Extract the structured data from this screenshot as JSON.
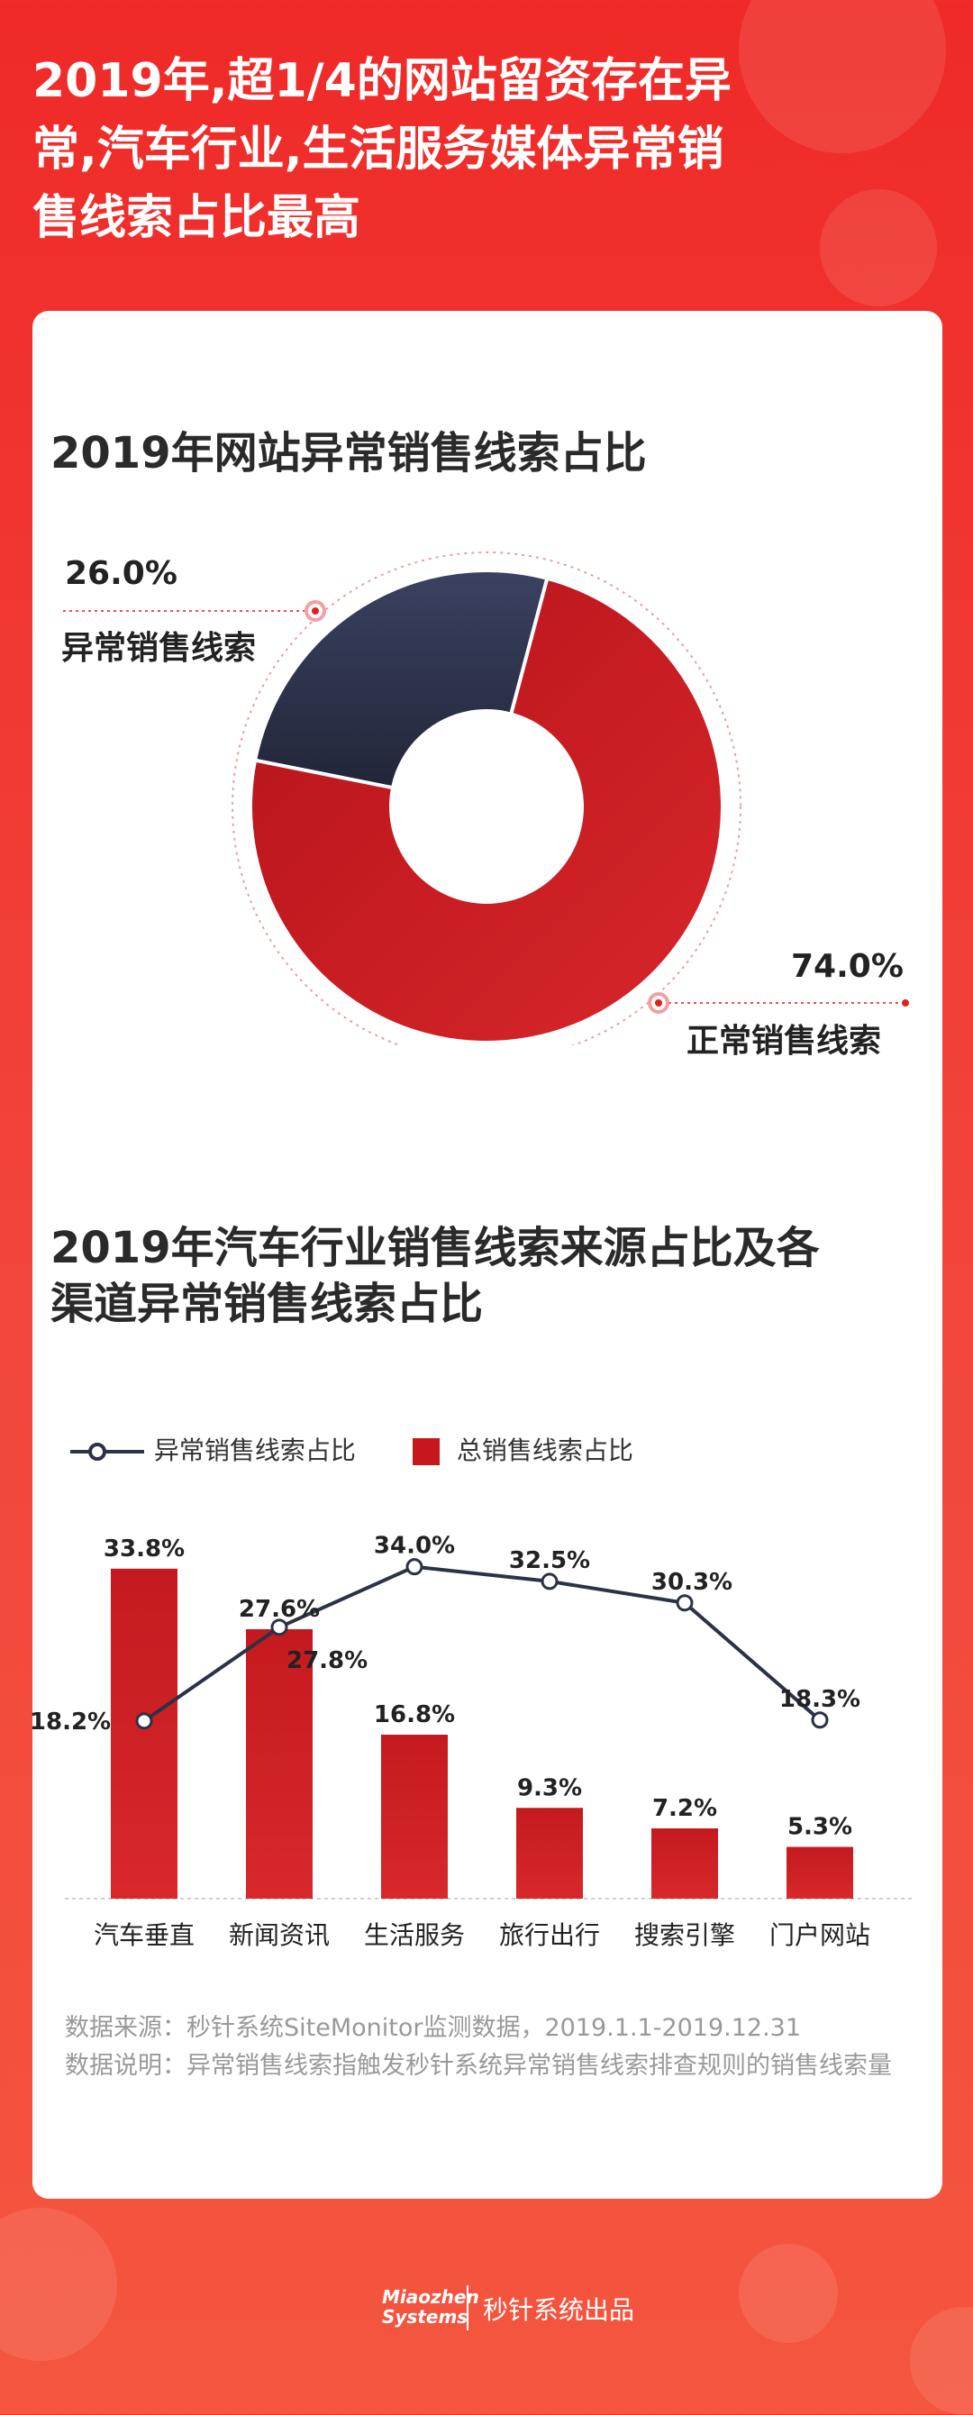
{
  "header": {
    "title_line1": "2019年,超1/4的网站留资存在异",
    "title_line2": "常,汽车行业,生活服务媒体异常销",
    "title_line3": "售线索占比最高"
  },
  "section1": {
    "title": "2019年网站异常销售线索占比"
  },
  "section2": {
    "title_line1": "2019年汽车行业销售线索来源占比及各",
    "title_line2": "渠道异常销售线索占比"
  },
  "chart_data": [
    {
      "type": "pie",
      "donut": true,
      "slices": [
        {
          "label": "异常销售线索",
          "value": 26.0,
          "display": "26.0%",
          "color": "#2c3246"
        },
        {
          "label": "正常销售线索",
          "value": 74.0,
          "display": "74.0%",
          "color": "#c8161d"
        }
      ]
    },
    {
      "type": "bar",
      "categories": [
        "汽车垂直",
        "新闻资讯",
        "生活服务",
        "旅行出行",
        "搜索引擎",
        "门户网站"
      ],
      "series": [
        {
          "name": "总销售线索占比",
          "type": "bar",
          "values": [
            33.8,
            27.6,
            16.8,
            9.3,
            7.2,
            5.3
          ],
          "labels": [
            "33.8%",
            "27.6%",
            "16.8%",
            "9.3%",
            "7.2%",
            "5.3%"
          ],
          "color": "#c8161d"
        },
        {
          "name": "异常销售线索占比",
          "type": "line",
          "values": [
            18.2,
            27.8,
            34.0,
            32.5,
            30.3,
            18.3
          ],
          "labels": [
            "18.2%",
            "27.8%",
            "34.0%",
            "32.5%",
            "30.3%",
            "18.3%"
          ],
          "color": "#2c3246"
        }
      ],
      "ylim": [
        0,
        36
      ]
    }
  ],
  "notes": {
    "source": "数据来源：秒针系统SiteMonitor监测数据，2019.1.1-2019.12.31",
    "explanation": "数据说明：异常销售线索指触发秒针系统异常销售线索排查规则的销售线索量"
  },
  "footer": {
    "brand_line1": "Miaozhen",
    "brand_line2": "Systems",
    "text": "秒针系统出品"
  },
  "colors": {
    "background": "#ef2a28",
    "accent_red": "#c8161d",
    "navy": "#2c3246"
  }
}
